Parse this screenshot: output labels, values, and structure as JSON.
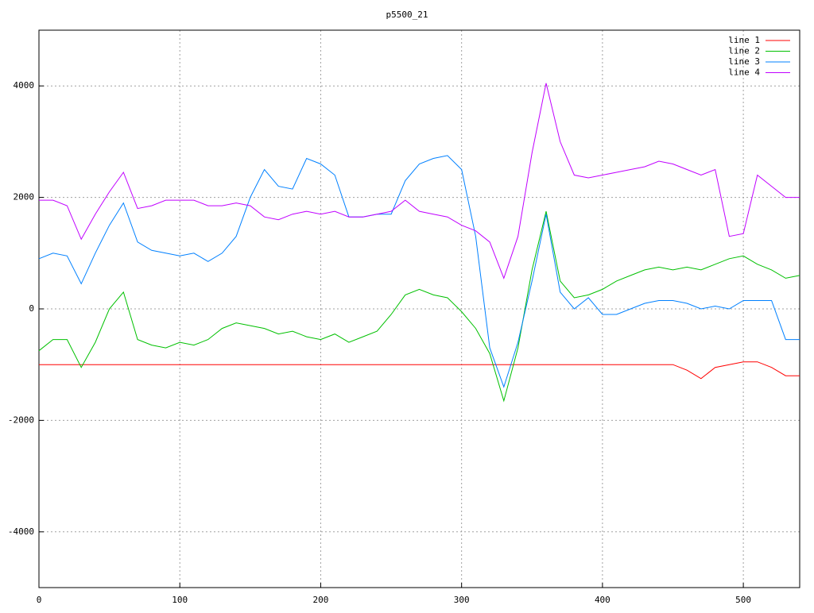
{
  "chart_data": {
    "type": "line",
    "title": "p5500_21",
    "x": [
      0,
      10,
      20,
      30,
      40,
      50,
      60,
      70,
      80,
      90,
      100,
      110,
      120,
      130,
      140,
      150,
      160,
      170,
      180,
      190,
      200,
      210,
      220,
      230,
      240,
      250,
      260,
      270,
      280,
      290,
      300,
      310,
      320,
      330,
      340,
      350,
      360,
      370,
      380,
      390,
      400,
      410,
      420,
      430,
      440,
      450,
      460,
      470,
      480,
      490,
      500,
      510,
      520,
      530,
      540
    ],
    "series": [
      {
        "name": "line 1",
        "color": "#ff0000",
        "values": [
          -1000,
          -1000,
          -1000,
          -1000,
          -1000,
          -1000,
          -1000,
          -1000,
          -1000,
          -1000,
          -1000,
          -1000,
          -1000,
          -1000,
          -1000,
          -1000,
          -1000,
          -1000,
          -1000,
          -1000,
          -1000,
          -1000,
          -1000,
          -1000,
          -1000,
          -1000,
          -1000,
          -1000,
          -1000,
          -1000,
          -1000,
          -1000,
          -1000,
          -1000,
          -1000,
          -1000,
          -1000,
          -1000,
          -1000,
          -1000,
          -1000,
          -1000,
          -1000,
          -1000,
          -1000,
          -1000,
          -1100,
          -1250,
          -1050,
          -1000,
          -950,
          -950,
          -1050,
          -1200,
          -1200
        ]
      },
      {
        "name": "line 2",
        "color": "#00c000",
        "values": [
          -750,
          -550,
          -550,
          -1050,
          -600,
          0,
          300,
          -550,
          -650,
          -700,
          -600,
          -650,
          -550,
          -350,
          -250,
          -300,
          -350,
          -450,
          -400,
          -500,
          -550,
          -450,
          -600,
          -500,
          -400,
          -100,
          250,
          350,
          250,
          200,
          -50,
          -350,
          -800,
          -1650,
          -700,
          700,
          1750,
          500,
          200,
          250,
          350,
          500,
          600,
          700,
          750,
          700,
          750,
          700,
          800,
          900,
          950,
          800,
          700,
          550,
          600
        ]
      },
      {
        "name": "line 3",
        "color": "#0080ff",
        "values": [
          900,
          1000,
          950,
          450,
          1000,
          1500,
          1900,
          1200,
          1050,
          1000,
          950,
          1000,
          850,
          1000,
          1300,
          2000,
          2500,
          2200,
          2150,
          2700,
          2600,
          2400,
          1650,
          1650,
          1700,
          1700,
          2300,
          2600,
          2700,
          2750,
          2500,
          1300,
          -700,
          -1400,
          -600,
          500,
          1700,
          300,
          0,
          200,
          -100,
          -100,
          0,
          100,
          150,
          150,
          100,
          0,
          50,
          0,
          150,
          150,
          150,
          -550,
          -550
        ]
      },
      {
        "name": "line 4",
        "color": "#c000ff",
        "values": [
          1950,
          1950,
          1850,
          1250,
          1700,
          2100,
          2450,
          1800,
          1850,
          1950,
          1950,
          1950,
          1850,
          1850,
          1900,
          1850,
          1650,
          1600,
          1700,
          1750,
          1700,
          1750,
          1650,
          1650,
          1700,
          1750,
          1950,
          1750,
          1700,
          1650,
          1500,
          1400,
          1200,
          550,
          1300,
          2800,
          4050,
          3000,
          2400,
          2350,
          2400,
          2450,
          2500,
          2550,
          2650,
          2600,
          2500,
          2400,
          2500,
          1300,
          1350,
          2400,
          2200,
          2000,
          2000
        ]
      }
    ],
    "xlim": [
      0,
      540
    ],
    "xticks": [
      0,
      100,
      200,
      300,
      400,
      500
    ],
    "ylim": [
      -5000,
      5000
    ],
    "yticks": [
      -4000,
      -2000,
      0,
      2000,
      4000
    ],
    "grid": true,
    "legend": "top-right"
  }
}
